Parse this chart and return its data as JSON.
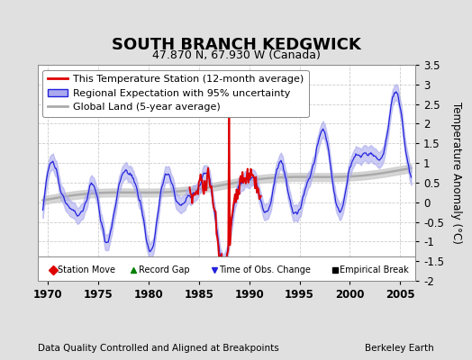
{
  "title": "SOUTH BRANCH KEDGWICK",
  "subtitle": "47.870 N, 67.930 W (Canada)",
  "ylabel": "Temperature Anomaly (°C)",
  "footer_left": "Data Quality Controlled and Aligned at Breakpoints",
  "footer_right": "Berkeley Earth",
  "xlim": [
    1969.0,
    2006.5
  ],
  "ylim": [
    -2.0,
    3.5
  ],
  "yticks": [
    -2,
    -1.5,
    -1,
    -0.5,
    0,
    0.5,
    1,
    1.5,
    2,
    2.5,
    3,
    3.5
  ],
  "xticks": [
    1970,
    1975,
    1980,
    1985,
    1990,
    1995,
    2000,
    2005
  ],
  "bg_color": "#e0e0e0",
  "plot_bg_color": "#ffffff",
  "grid_color": "#cccccc",
  "regional_color": "#2222dd",
  "regional_fill_color": "#aaaaee",
  "station_color": "#dd0000",
  "global_color": "#aaaaaa",
  "global_fill_color": "#cccccc",
  "title_fontsize": 13,
  "subtitle_fontsize": 9,
  "legend_fontsize": 8,
  "tick_fontsize": 8.5,
  "footer_fontsize": 7.5
}
